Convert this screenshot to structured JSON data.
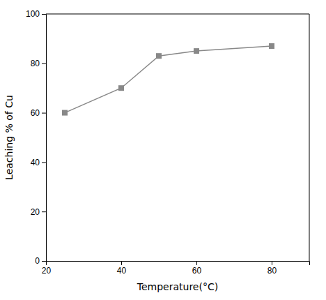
{
  "chart_data": {
    "type": "line",
    "xlabel": "Temperature(°C)",
    "ylabel": "Leaching % of Cu",
    "x": [
      25,
      40,
      50,
      60,
      80
    ],
    "values": [
      60,
      70,
      83,
      85,
      87
    ],
    "color": "#888888",
    "marker": "square",
    "xlim": [
      20,
      90
    ],
    "ylim": [
      0,
      100
    ],
    "xticks": [
      20,
      40,
      60,
      80
    ],
    "yticks": [
      0,
      20,
      40,
      60,
      80,
      100
    ]
  }
}
